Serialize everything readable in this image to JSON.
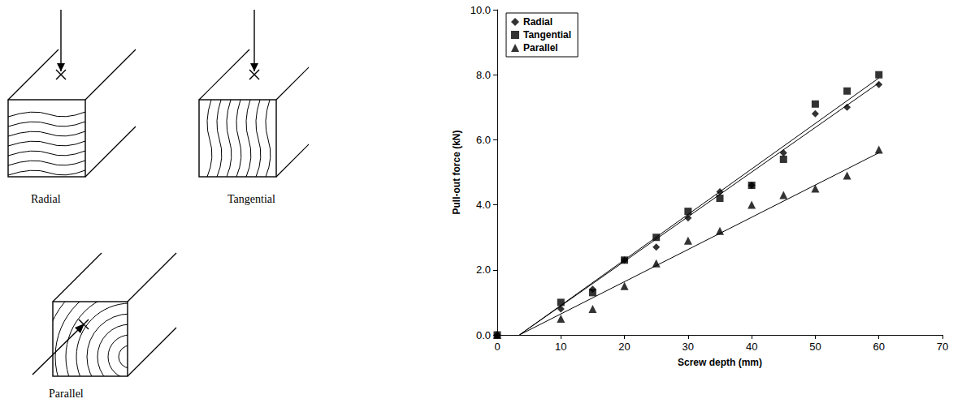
{
  "diagram": {
    "panels": [
      {
        "label": "Radial"
      },
      {
        "label": "Tangential"
      },
      {
        "label": "Parallel"
      }
    ]
  },
  "chart_data": {
    "type": "scatter",
    "x_label": "Screw depth (mm)",
    "y_label": "Pull-out force (kN)",
    "x": [
      0,
      10,
      15,
      20,
      25,
      30,
      35,
      40,
      45,
      50,
      55,
      60
    ],
    "series": [
      {
        "name": "Radial",
        "color": "#000000",
        "marker": "diamond",
        "values": [
          0,
          0.8,
          1.4,
          2.3,
          2.7,
          3.6,
          4.4,
          4.6,
          5.6,
          6.8,
          7.0,
          7.7
        ],
        "fit_x": [
          3.5,
          60
        ],
        "fit_values": [
          0,
          7.75
        ]
      },
      {
        "name": "Tangential",
        "color": "#000000",
        "marker": "square",
        "values": [
          0,
          1.0,
          1.3,
          2.3,
          3.0,
          3.8,
          4.2,
          4.6,
          5.4,
          7.1,
          7.5,
          8.0
        ],
        "fit_x": [
          3.5,
          60
        ],
        "fit_values": [
          0,
          7.9
        ]
      },
      {
        "name": "Parallel",
        "color": "#000000",
        "marker": "triangle",
        "values": [
          0,
          0.5,
          0.8,
          1.5,
          2.2,
          2.9,
          3.2,
          4.0,
          4.3,
          4.5,
          4.9,
          5.7
        ],
        "fit_x": [
          3.5,
          60
        ],
        "fit_values": [
          0,
          5.6
        ]
      }
    ],
    "xlim": [
      0,
      70
    ],
    "xticks": [
      0,
      10,
      20,
      30,
      40,
      50,
      60,
      70
    ],
    "ylim": [
      0,
      10
    ],
    "yticks": [
      {
        "value": 0,
        "label": "0.0"
      },
      {
        "value": 2,
        "label": "2.0"
      },
      {
        "value": 4,
        "label": "4.0"
      },
      {
        "value": 6,
        "label": "6.0"
      },
      {
        "value": 8,
        "label": "8.0"
      },
      {
        "value": 10,
        "label": "10.0"
      }
    ],
    "grid": false,
    "legend": "upper left"
  }
}
